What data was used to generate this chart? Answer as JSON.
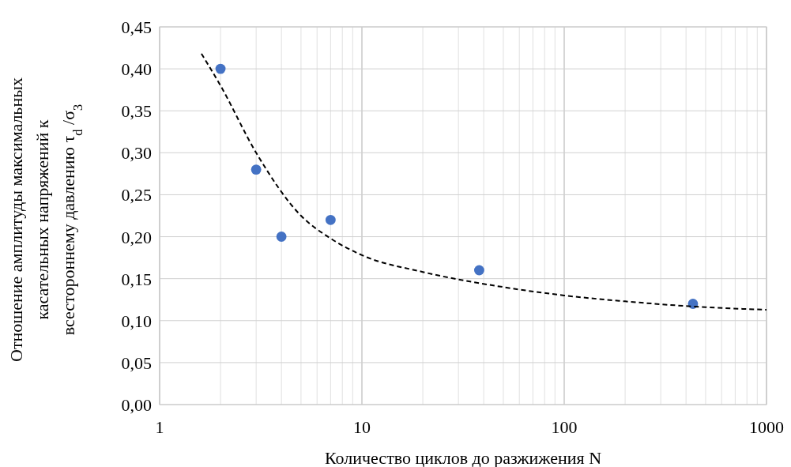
{
  "chart_data": {
    "type": "scatter",
    "xlabel": "Количество циклов до разжижения N",
    "ylabel": "Отношение амплитуды максимальных касательных напряжений к всестороннему давлению τ$_{d}$ /σ$_{3}$",
    "log": "x",
    "grid": true,
    "xlim": [
      1,
      1000
    ],
    "xticks": [
      1,
      10,
      100,
      1000
    ],
    "ylim": [
      0,
      0.45
    ],
    "yticks": [
      {
        "value": 0,
        "label": "0,00"
      },
      {
        "value": 0.05,
        "label": "0,05"
      },
      {
        "value": 0.1,
        "label": "0,10"
      },
      {
        "value": 0.15,
        "label": "0,15"
      },
      {
        "value": 0.2,
        "label": "0,20"
      },
      {
        "value": 0.25,
        "label": "0,25"
      },
      {
        "value": 0.3,
        "label": "0,30"
      },
      {
        "value": 0.35,
        "label": "0,35"
      },
      {
        "value": 0.4,
        "label": "0,40"
      },
      {
        "value": 0.45,
        "label": "0,45"
      }
    ],
    "series": [
      {
        "color": "#4472c4",
        "marker": "circle",
        "x": [
          2,
          3,
          4,
          7,
          38,
          433
        ],
        "values": [
          0.4,
          0.28,
          0.2,
          0.22,
          0.16,
          0.12
        ]
      },
      {
        "type": "line",
        "color": "#000000",
        "marker": "none",
        "line_style": "dashed",
        "x": [
          1.61,
          2,
          3,
          5,
          7,
          10,
          20,
          50,
          100,
          200,
          500,
          1000
        ],
        "values": [
          0.418,
          0.38,
          0.3,
          0.225,
          0.198,
          0.178,
          0.158,
          0.14,
          0.13,
          0.123,
          0.116,
          0.113
        ]
      }
    ]
  }
}
